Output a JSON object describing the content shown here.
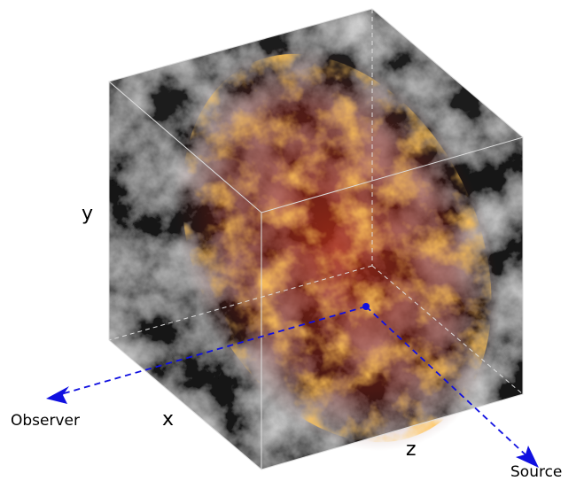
{
  "axes": {
    "y": "y",
    "x": "x",
    "z": "z"
  },
  "ray": {
    "observer": "Observer",
    "source": "Source"
  }
}
